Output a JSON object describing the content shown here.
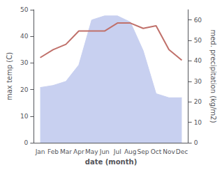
{
  "chart_data": {
    "type": "line",
    "xlabel": "date (month)",
    "ylabel": "max temp (C)",
    "y2label": "med. precipitation (kg/m2)",
    "categories": [
      "Jan",
      "Feb",
      "Mar",
      "Apr",
      "May",
      "Jun",
      "Jul",
      "Aug",
      "Sep",
      "Oct",
      "Nov",
      "Dec"
    ],
    "series": [
      {
        "type": "area",
        "axis": "y2",
        "color": "#c8d0f0",
        "values": [
          27,
          28,
          30,
          38,
          60,
          62,
          62,
          59,
          45,
          24,
          22,
          22
        ]
      },
      {
        "type": "line",
        "color": "#c0706a",
        "values": [
          32,
          35,
          37,
          42,
          42,
          42,
          45,
          45,
          43,
          44,
          35,
          31
        ]
      }
    ],
    "ylim": [
      0,
      50
    ],
    "yticks": [
      0,
      10,
      20,
      30,
      40,
      50
    ],
    "y2lim": [
      0,
      65
    ],
    "y2ticks": [
      0,
      10,
      20,
      30,
      40,
      50,
      60
    ],
    "grid": false
  }
}
